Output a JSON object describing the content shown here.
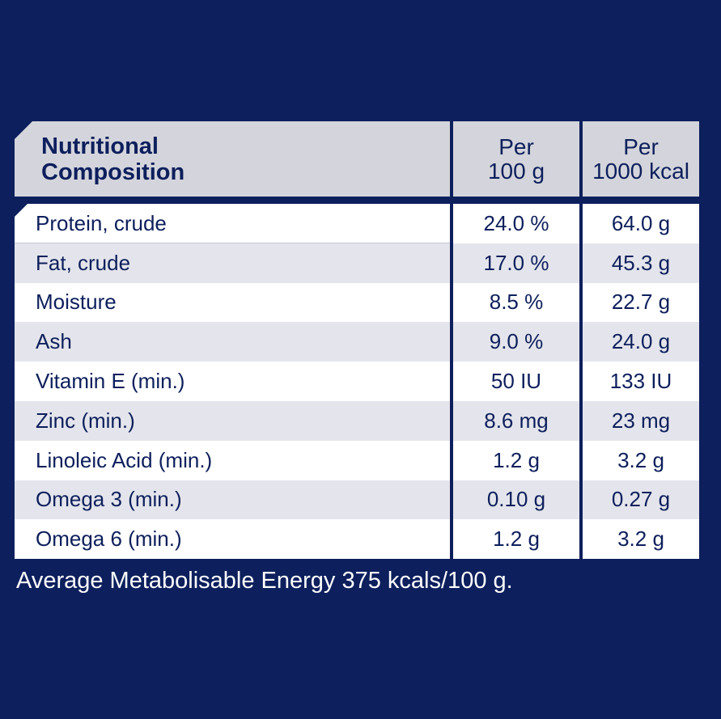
{
  "table": {
    "header": {
      "col1_line1": "Nutritional",
      "col1_line2": "Composition",
      "col2_line1": "Per",
      "col2_line2": "100 g",
      "col3_line1": "Per",
      "col3_line2": "1000 kcal"
    },
    "rows": [
      {
        "name": "Protein, crude",
        "per100g": "24.0 %",
        "per1000kcal": "64.0 g"
      },
      {
        "name": "Fat, crude",
        "per100g": "17.0 %",
        "per1000kcal": "45.3 g"
      },
      {
        "name": "Moisture",
        "per100g": "8.5 %",
        "per1000kcal": "22.7 g"
      },
      {
        "name": "Ash",
        "per100g": "9.0 %",
        "per1000kcal": "24.0 g"
      },
      {
        "name": "Vitamin E (min.)",
        "per100g": "50 IU",
        "per1000kcal": "133 IU"
      },
      {
        "name": "Zinc (min.)",
        "per100g": "8.6 mg",
        "per1000kcal": "23 mg"
      },
      {
        "name": "Linoleic Acid (min.)",
        "per100g": "1.2 g",
        "per1000kcal": "3.2 g"
      },
      {
        "name": "Omega 3 (min.)",
        "per100g": "0.10 g",
        "per1000kcal": "0.27 g"
      },
      {
        "name": "Omega 6 (min.)",
        "per100g": "1.2 g",
        "per1000kcal": "3.2 g"
      }
    ]
  },
  "footer": "Average Metabolisable Energy 375 kcals/100 g.",
  "colors": {
    "background": "#0d1f5c",
    "header": "#d4d5dc",
    "row_alt": "#e4e5ec",
    "row": "#ffffff"
  }
}
